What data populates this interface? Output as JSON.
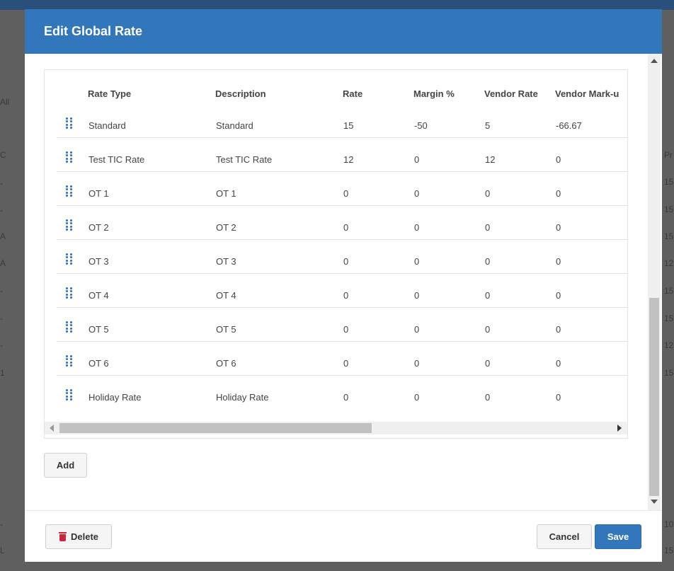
{
  "background": {
    "left_fragments": [
      "All",
      "C",
      "-",
      "-",
      "A",
      "A",
      "-",
      "-",
      "-",
      "1",
      "-",
      "L"
    ],
    "right_fragments": [
      "Pr",
      "15",
      "15",
      "15",
      "12",
      "15",
      "15",
      "12",
      "15",
      "10",
      "15"
    ]
  },
  "dialog": {
    "title": "Edit Global Rate",
    "columns": [
      "Rate Type",
      "Description",
      "Rate",
      "Margin %",
      "Vendor Rate",
      "Vendor Mark-u"
    ],
    "rows": [
      {
        "rate_type": "Standard",
        "description": "Standard",
        "rate": "15",
        "margin": "-50",
        "vendor_rate": "5",
        "vendor_markup": "-66.67"
      },
      {
        "rate_type": "Test TIC Rate",
        "description": "Test TIC Rate",
        "rate": "12",
        "margin": "0",
        "vendor_rate": "12",
        "vendor_markup": "0"
      },
      {
        "rate_type": "OT 1",
        "description": "OT 1",
        "rate": "0",
        "margin": "0",
        "vendor_rate": "0",
        "vendor_markup": "0"
      },
      {
        "rate_type": "OT 2",
        "description": "OT 2",
        "rate": "0",
        "margin": "0",
        "vendor_rate": "0",
        "vendor_markup": "0"
      },
      {
        "rate_type": "OT 3",
        "description": "OT 3",
        "rate": "0",
        "margin": "0",
        "vendor_rate": "0",
        "vendor_markup": "0"
      },
      {
        "rate_type": "OT 4",
        "description": "OT 4",
        "rate": "0",
        "margin": "0",
        "vendor_rate": "0",
        "vendor_markup": "0"
      },
      {
        "rate_type": "OT 5",
        "description": "OT 5",
        "rate": "0",
        "margin": "0",
        "vendor_rate": "0",
        "vendor_markup": "0"
      },
      {
        "rate_type": "OT 6",
        "description": "OT 6",
        "rate": "0",
        "margin": "0",
        "vendor_rate": "0",
        "vendor_markup": "0"
      },
      {
        "rate_type": "Holiday Rate",
        "description": "Holiday Rate",
        "rate": "0",
        "margin": "0",
        "vendor_rate": "0",
        "vendor_markup": "0"
      }
    ],
    "add_label": "Add",
    "delete_label": "Delete",
    "cancel_label": "Cancel",
    "save_label": "Save"
  },
  "icons": {
    "drag_handle": "drag-handle-icon",
    "delete": "trash-icon",
    "scroll_up": "arrow-up-icon",
    "scroll_down": "arrow-down-icon",
    "scroll_left": "arrow-left-icon",
    "scroll_right": "arrow-right-icon"
  },
  "colors": {
    "header_bg": "#3277bc",
    "primary_button": "#3277bc",
    "delete_icon": "#d0243a",
    "drag_handle": "#2f6cad"
  }
}
